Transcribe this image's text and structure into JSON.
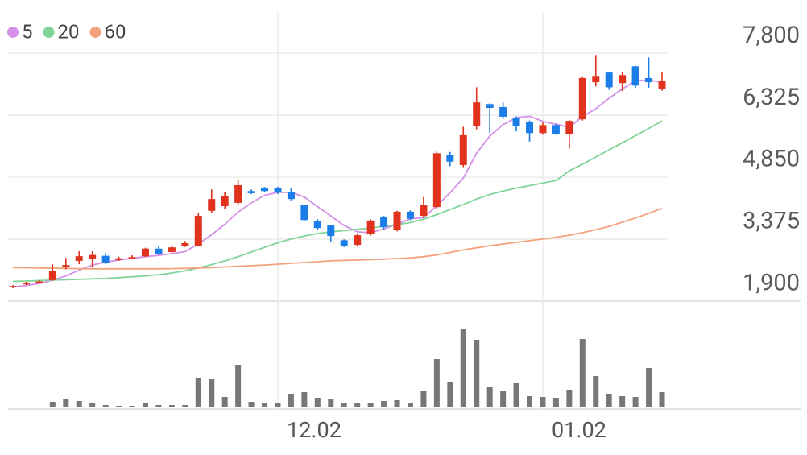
{
  "chart_data": {
    "type": "candlestick",
    "categories": [
      null,
      null,
      null,
      null,
      null,
      null,
      null,
      null,
      null,
      null,
      null,
      null,
      null,
      null,
      null,
      null,
      null,
      null,
      null,
      null,
      "12.02",
      null,
      null,
      null,
      null,
      null,
      null,
      null,
      null,
      null,
      null,
      null,
      null,
      null,
      null,
      null,
      null,
      null,
      null,
      null,
      "01.02",
      null,
      null,
      null,
      null,
      null,
      null,
      null,
      null,
      null
    ],
    "open": [
      2230,
      2300,
      2340,
      2400,
      2720,
      2860,
      2900,
      2980,
      2880,
      2920,
      2970,
      3150,
      3070,
      3220,
      3220,
      4050,
      4160,
      4240,
      4520,
      4600,
      4600,
      4490,
      4180,
      3800,
      3700,
      3350,
      3240,
      3490,
      3900,
      3600,
      4030,
      3930,
      4140,
      5370,
      5140,
      6060,
      6590,
      6520,
      6270,
      6170,
      5900,
      6090,
      5880,
      6230,
      7110,
      7340,
      7090,
      7490,
      7210,
      6960
    ],
    "high": [
      2280,
      2360,
      2400,
      2780,
      2930,
      3090,
      3090,
      3050,
      2960,
      2990,
      3170,
      3200,
      3230,
      3330,
      3990,
      4560,
      4490,
      4780,
      4560,
      4620,
      4620,
      4580,
      4200,
      3850,
      3720,
      3370,
      3500,
      3850,
      3930,
      4050,
      4060,
      4380,
      5460,
      5450,
      6050,
      6990,
      6610,
      6630,
      6300,
      6200,
      6150,
      6120,
      6210,
      7250,
      7760,
      7360,
      7360,
      7500,
      7700,
      7360
    ],
    "low": [
      2210,
      2280,
      2320,
      2380,
      2660,
      2780,
      2700,
      2780,
      2860,
      2900,
      2950,
      3000,
      3040,
      3190,
      3200,
      3990,
      4100,
      4200,
      4450,
      4500,
      4450,
      4290,
      3800,
      3590,
      3320,
      3190,
      3220,
      3460,
      3600,
      3560,
      3830,
      3880,
      4100,
      5110,
      5090,
      5990,
      5900,
      6230,
      5940,
      5700,
      5860,
      5860,
      5530,
      6200,
      7010,
      6930,
      6900,
      6980,
      6980,
      6910
    ],
    "close": [
      2260,
      2330,
      2370,
      2610,
      2760,
      2970,
      3000,
      2820,
      2920,
      2950,
      3150,
      3030,
      3180,
      3280,
      3930,
      4330,
      4410,
      4660,
      4470,
      4520,
      4490,
      4330,
      3830,
      3640,
      3450,
      3220,
      3470,
      3820,
      3660,
      4030,
      3860,
      4180,
      5420,
      5220,
      5850,
      6630,
      6500,
      6290,
      6060,
      5900,
      6090,
      5880,
      6190,
      7210,
      7260,
      6990,
      7280,
      7030,
      7110,
      7150
    ],
    "volume": [
      1,
      1,
      1,
      7,
      11,
      8,
      6,
      3,
      2,
      2,
      5,
      3,
      3,
      3,
      36,
      35,
      13,
      53,
      7,
      5,
      5,
      17,
      19,
      12,
      11,
      6,
      6,
      6,
      8,
      9,
      6,
      20,
      60,
      32,
      97,
      84,
      25,
      20,
      30,
      14,
      13,
      12,
      22,
      85,
      39,
      17,
      14,
      13,
      49,
      19
    ],
    "up_color": "#e0321c",
    "down_color": "#1a7de8",
    "volume_color": "#777777",
    "series": [
      {
        "name": "5",
        "color": "#d590e8",
        "values": [
          2240,
          2270,
          2320,
          2400,
          2500,
          2640,
          2760,
          2830,
          2880,
          2920,
          2960,
          2990,
          3030,
          3080,
          3260,
          3480,
          3730,
          4020,
          4240,
          4420,
          4490,
          4490,
          4380,
          4150,
          3930,
          3700,
          3550,
          3530,
          3620,
          3730,
          3860,
          3890,
          4170,
          4480,
          4830,
          5420,
          5830,
          6100,
          6270,
          6300,
          6180,
          6110,
          6040,
          6290,
          6480,
          6730,
          6950,
          7150,
          7160,
          7110
        ]
      },
      {
        "name": "20",
        "color": "#80d497",
        "values": [
          2370,
          2380,
          2390,
          2400,
          2410,
          2420,
          2430,
          2440,
          2460,
          2480,
          2500,
          2530,
          2570,
          2620,
          2690,
          2770,
          2860,
          2960,
          3070,
          3180,
          3290,
          3380,
          3450,
          3510,
          3550,
          3580,
          3610,
          3640,
          3680,
          3720,
          3770,
          3850,
          3960,
          4080,
          4200,
          4330,
          4440,
          4520,
          4590,
          4650,
          4710,
          4770,
          5000,
          5160,
          5330,
          5500,
          5670,
          5840,
          6010,
          6190
        ]
      },
      {
        "name": "60",
        "color": "#f2a27c",
        "values": [
          2700,
          2695,
          2690,
          2685,
          2680,
          2675,
          2670,
          2670,
          2670,
          2670,
          2670,
          2670,
          2675,
          2680,
          2690,
          2700,
          2715,
          2730,
          2745,
          2760,
          2780,
          2800,
          2820,
          2840,
          2860,
          2870,
          2880,
          2890,
          2900,
          2915,
          2930,
          2960,
          3000,
          3060,
          3120,
          3170,
          3220,
          3260,
          3300,
          3340,
          3380,
          3420,
          3470,
          3530,
          3600,
          3680,
          3780,
          3880,
          3990,
          4110
        ]
      }
    ],
    "ylim": [
      1900,
      8780
    ],
    "yticks": [
      {
        "value": 7800,
        "label": "7,800"
      },
      {
        "value": 6325,
        "label": "6,325"
      },
      {
        "value": 4850,
        "label": "4,850"
      },
      {
        "value": 3375,
        "label": "3,375"
      },
      {
        "value": 1900,
        "label": "1,900"
      }
    ],
    "grid": true
  }
}
